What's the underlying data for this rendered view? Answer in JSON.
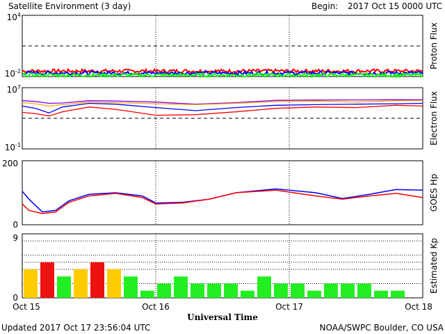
{
  "header": {
    "title": "Satellite Environment (3 day)",
    "begin_label": "Begin:",
    "begin_value": "2017 Oct 15 0000 UTC"
  },
  "footer": {
    "updated": "Updated 2017 Oct 17 23:56:04 UTC",
    "credit": "NOAA/SWPC Boulder, CO USA",
    "xlabel": "Universal Time"
  },
  "x_ticks": [
    "Oct 15",
    "Oct 16",
    "Oct 17",
    "Oct 18"
  ],
  "colors": {
    "red": "#ff0000",
    "blue": "#0000ff",
    "green": "#00ff00",
    "orange": "#ffa500",
    "purple": "#8000ff",
    "kp_green": "#22ee22",
    "kp_yellow": "#ffcc00",
    "kp_red": "#ee1111"
  },
  "chart_data": [
    {
      "type": "line",
      "panel": "proton",
      "ylabel": "Proton Flux",
      "scale": "log",
      "ylim": [
        0.01,
        10000
      ],
      "y_ticks": {
        "top_base": "10",
        "top_exp": "4",
        "bottom_base": "10",
        "bottom_exp": "-2"
      },
      "threshold": 10,
      "series": [
        {
          "color": "red",
          "level": 0.035
        },
        {
          "color": "blue",
          "level": 0.022
        },
        {
          "color": "green",
          "level": 0.014
        }
      ]
    },
    {
      "type": "line",
      "panel": "electron",
      "ylabel": "Electron Flux",
      "scale": "log",
      "ylim": [
        0.1,
        10000000
      ],
      "y_ticks": {
        "top_base": "10",
        "top_exp": "7",
        "bottom_base": "10",
        "bottom_exp": "-1"
      },
      "threshold": 1000,
      "x_days": [
        0,
        0.1,
        0.2,
        0.3,
        0.5,
        0.7,
        1.0,
        1.3,
        1.6,
        1.9,
        2.2,
        2.5,
        2.8,
        3.0
      ],
      "series": [
        {
          "color": "purple",
          "values": [
            200000,
            160000,
            90000,
            100000,
            200000,
            180000,
            130000,
            70000,
            110000,
            220000,
            240000,
            250000,
            270000,
            260000
          ]
        },
        {
          "color": "orange",
          "values": [
            110000,
            80000,
            40000,
            60000,
            130000,
            110000,
            80000,
            60000,
            90000,
            160000,
            180000,
            130000,
            200000,
            210000
          ]
        },
        {
          "color": "blue",
          "values": [
            40000,
            20000,
            5000,
            30000,
            90000,
            70000,
            25000,
            10000,
            25000,
            50000,
            60000,
            70000,
            80000,
            90000
          ]
        },
        {
          "color": "red",
          "values": [
            6000,
            4000,
            2000,
            7000,
            30000,
            15000,
            2500,
            3000,
            7000,
            20000,
            30000,
            25000,
            50000,
            40000
          ]
        }
      ]
    },
    {
      "type": "line",
      "panel": "goes_hp",
      "ylabel": "GOES Hp",
      "scale": "linear",
      "ylim": [
        0,
        200
      ],
      "y_ticks": {
        "top": "200",
        "bottom": "0"
      },
      "x_days": [
        0,
        0.05,
        0.15,
        0.25,
        0.35,
        0.5,
        0.7,
        0.9,
        1.0,
        1.2,
        1.4,
        1.6,
        1.9,
        2.2,
        2.4,
        2.6,
        2.8,
        3.0
      ],
      "series": [
        {
          "color": "blue",
          "values": [
            105,
            80,
            40,
            45,
            75,
            95,
            100,
            90,
            68,
            70,
            80,
            100,
            112,
            100,
            82,
            95,
            110,
            108
          ]
        },
        {
          "color": "red",
          "values": [
            65,
            45,
            35,
            40,
            70,
            90,
            98,
            85,
            65,
            68,
            80,
            100,
            108,
            90,
            80,
            90,
            98,
            85
          ]
        }
      ]
    },
    {
      "type": "bar",
      "panel": "kp",
      "ylabel": "Estimated Kp",
      "ylim": [
        0,
        9
      ],
      "y_ticks": {
        "top": "9",
        "bottom": "0"
      },
      "values": [
        4,
        5,
        3,
        4,
        5,
        4,
        3,
        1,
        2,
        3,
        2,
        2,
        2,
        1,
        3,
        2,
        2,
        1,
        2,
        2,
        2,
        1,
        1
      ]
    }
  ]
}
